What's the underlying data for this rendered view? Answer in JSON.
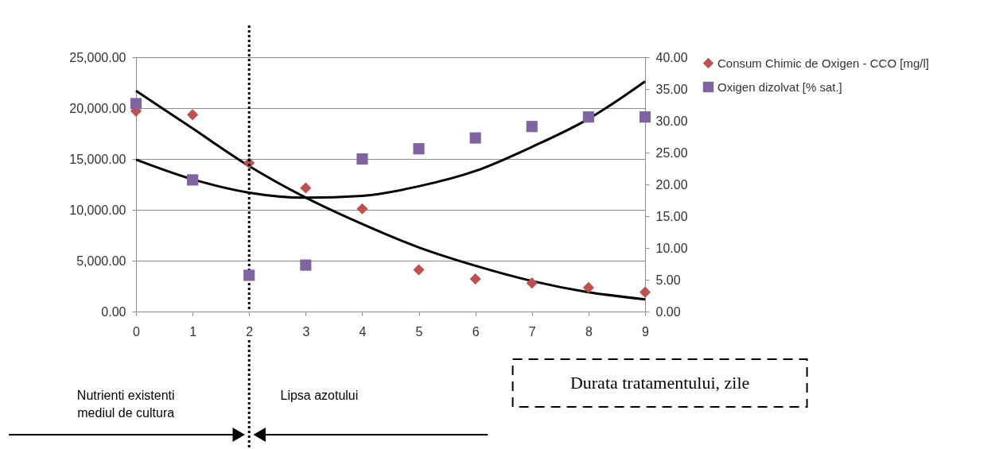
{
  "chart_data": {
    "type": "scatter",
    "x": [
      0,
      1,
      2,
      3,
      4,
      5,
      6,
      7,
      8,
      9
    ],
    "series": [
      {
        "name": "Consum Chimic de Oxigen - CCO [mg/l]",
        "marker": "diamond",
        "color": "#c0504d",
        "values": [
          19700,
          19350,
          14600,
          12150,
          10100,
          4100,
          3200,
          2800,
          2350,
          1900
        ]
      },
      {
        "name": "Oxigen dizolvat [% sat.]",
        "marker": "square",
        "color": "#8064a2",
        "axis": "y2",
        "values": [
          32.7,
          20.7,
          5.7,
          7.3,
          24.0,
          25.6,
          27.3,
          29.1,
          30.6,
          30.6
        ]
      },
      {
        "type": "line",
        "color": "#000000",
        "values": [
          21700,
          18000,
          14300,
          11200,
          8600,
          6300,
          4500,
          3000,
          1900,
          1200
        ]
      },
      {
        "type": "line",
        "color": "#000000",
        "axis": "y2",
        "values": [
          23.9,
          20.8,
          18.7,
          17.9,
          18.2,
          19.7,
          22.1,
          25.9,
          30.3,
          36.2
        ]
      }
    ],
    "xlabel": "Durata tratamentului, zile",
    "xlim": [
      0,
      9
    ],
    "xticks": [
      0,
      1,
      2,
      3,
      4,
      5,
      6,
      7,
      8,
      9
    ],
    "ylim": [
      0,
      25000
    ],
    "yticks": [
      {
        "value": 0,
        "label": "0.00"
      },
      {
        "value": 5000,
        "label": "5,000.00"
      },
      {
        "value": 10000,
        "label": "10,000.00"
      },
      {
        "value": 15000,
        "label": "15,000.00"
      },
      {
        "value": 20000,
        "label": "20,000.00"
      },
      {
        "value": 25000,
        "label": "25,000.00"
      }
    ],
    "y2lim": [
      0,
      40
    ],
    "y2ticks": [
      {
        "value": 0,
        "label": "0.00"
      },
      {
        "value": 5,
        "label": "5.00"
      },
      {
        "value": 10,
        "label": "10.00"
      },
      {
        "value": 15,
        "label": "15.00"
      },
      {
        "value": 20,
        "label": "20.00"
      },
      {
        "value": 25,
        "label": "25.00"
      },
      {
        "value": 30,
        "label": "30.00"
      },
      {
        "value": 35,
        "label": "35.00"
      },
      {
        "value": 40,
        "label": "40.00"
      }
    ],
    "ref_lines": [
      {
        "axis": "x",
        "value": 2,
        "color": "#000000",
        "line_style": "dotted"
      }
    ],
    "annotations": [
      "Nutrienti existenti mediul de cultura",
      "Lipsa azotului"
    ],
    "grid": "y",
    "legend": "right"
  }
}
